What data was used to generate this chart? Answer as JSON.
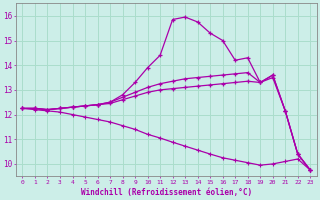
{
  "background_color": "#cceee8",
  "grid_color": "#aaddcc",
  "line_color": "#aa00aa",
  "xlabel": "Windchill (Refroidissement éolien,°C)",
  "xlim": [
    -0.5,
    23.5
  ],
  "ylim": [
    9.5,
    16.5
  ],
  "xtick_vals": [
    0,
    1,
    2,
    3,
    4,
    5,
    6,
    7,
    8,
    9,
    10,
    11,
    12,
    13,
    14,
    15,
    16,
    17,
    18,
    19,
    20,
    21,
    22,
    23
  ],
  "ytick_vals": [
    10,
    11,
    12,
    13,
    14,
    15,
    16
  ],
  "line1_x": [
    0,
    1,
    2,
    3,
    4,
    5,
    6,
    7,
    8,
    9,
    10,
    11,
    12,
    13,
    14,
    15,
    16,
    17,
    18,
    19,
    20,
    21,
    22,
    23
  ],
  "line1_y": [
    12.25,
    12.25,
    12.2,
    12.25,
    12.3,
    12.35,
    12.4,
    12.5,
    12.8,
    13.3,
    13.9,
    14.4,
    15.85,
    15.95,
    15.75,
    15.3,
    15.0,
    14.2,
    14.3,
    13.3,
    13.6,
    12.15,
    10.4,
    9.75
  ],
  "line2_x": [
    0,
    1,
    2,
    3,
    4,
    5,
    6,
    7,
    8,
    9,
    10,
    11,
    12,
    13,
    14,
    15,
    16,
    17,
    18,
    19,
    20,
    21,
    22,
    23
  ],
  "line2_y": [
    12.25,
    12.25,
    12.2,
    12.25,
    12.3,
    12.35,
    12.4,
    12.5,
    12.7,
    12.9,
    13.1,
    13.25,
    13.35,
    13.45,
    13.5,
    13.55,
    13.6,
    13.65,
    13.7,
    13.3,
    13.6,
    12.15,
    10.4,
    9.75
  ],
  "line3_x": [
    0,
    1,
    2,
    3,
    4,
    5,
    6,
    7,
    8,
    9,
    10,
    11,
    12,
    13,
    14,
    15,
    16,
    17,
    18,
    19,
    20,
    21,
    22,
    23
  ],
  "line3_y": [
    12.25,
    12.25,
    12.2,
    12.25,
    12.3,
    12.35,
    12.4,
    12.45,
    12.6,
    12.75,
    12.9,
    13.0,
    13.05,
    13.1,
    13.15,
    13.2,
    13.25,
    13.3,
    13.35,
    13.3,
    13.5,
    12.15,
    10.4,
    9.75
  ],
  "line4_x": [
    0,
    1,
    2,
    3,
    4,
    5,
    6,
    7,
    8,
    9,
    10,
    11,
    12,
    13,
    14,
    15,
    16,
    17,
    18,
    19,
    20,
    21,
    22,
    23
  ],
  "line4_y": [
    12.25,
    12.2,
    12.15,
    12.1,
    12.0,
    11.9,
    11.8,
    11.7,
    11.55,
    11.4,
    11.2,
    11.05,
    10.88,
    10.72,
    10.56,
    10.4,
    10.25,
    10.15,
    10.05,
    9.95,
    10.0,
    10.1,
    10.2,
    9.75
  ]
}
